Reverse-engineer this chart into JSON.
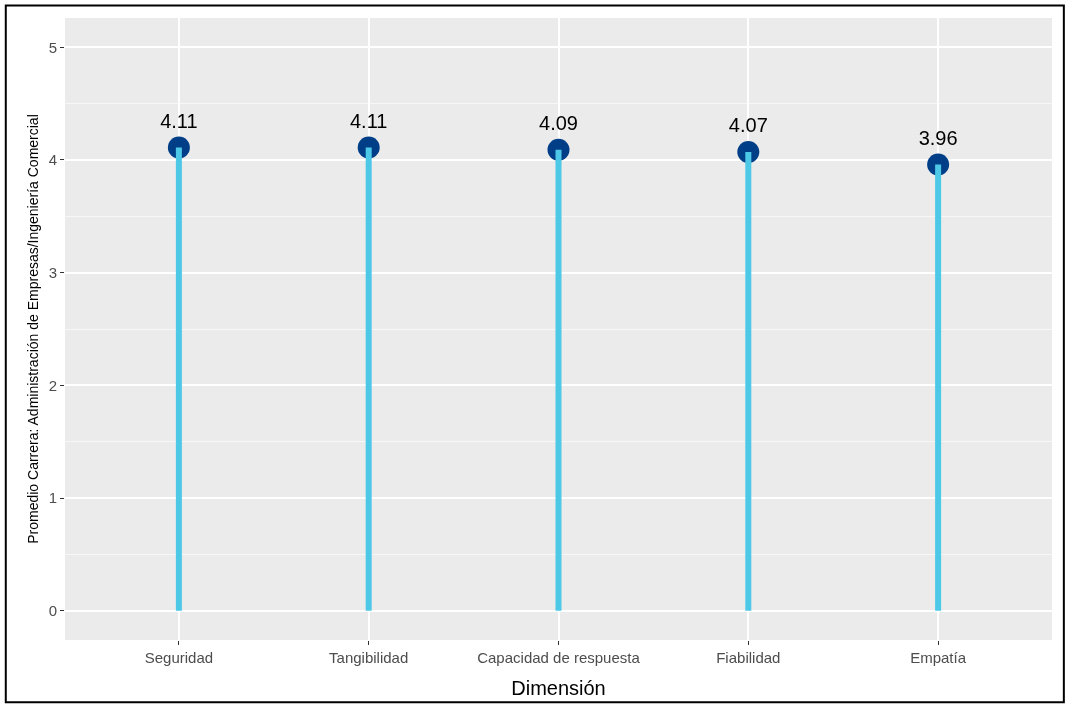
{
  "chart_data": {
    "type": "lollipop",
    "xlabel": "Dimensión",
    "ylabel": "Promedio Carrera: Administración de Empresas/Ingeniería Comercial",
    "categories": [
      "Seguridad",
      "Tangibilidad",
      "Capacidad de respuesta",
      "Fiabilidad",
      "Empatía"
    ],
    "series": [
      {
        "color": "#003f87",
        "values": [
          4.11,
          4.11,
          4.09,
          4.07,
          3.96
        ]
      }
    ],
    "ylim": [
      -0.26,
      5.26
    ],
    "yticks": [
      0,
      1,
      2,
      3,
      4,
      5
    ],
    "grid": true,
    "data_labels": true,
    "marker": "circle"
  }
}
